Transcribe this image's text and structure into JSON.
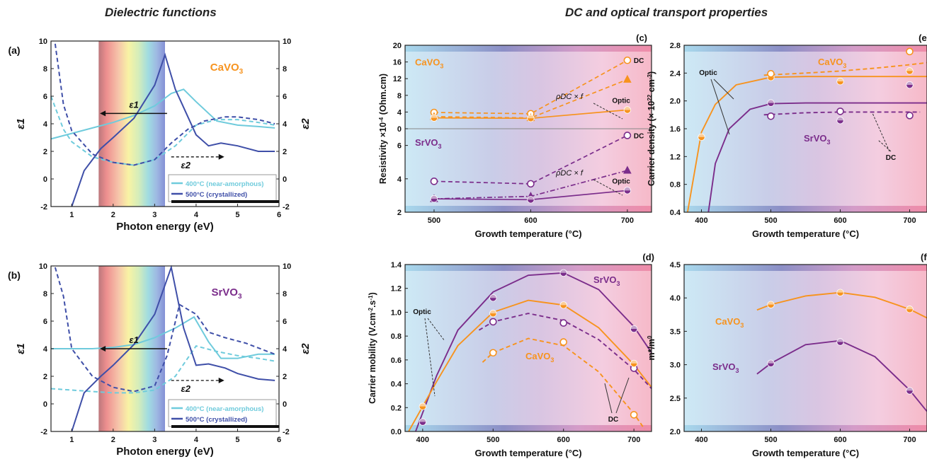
{
  "headings": {
    "left": "Dielectric functions",
    "right": "DC and optical transport properties"
  },
  "colors": {
    "light_blue": "#6fcbdc",
    "dark_blue": "#3f4fa8",
    "orange": "#f7931e",
    "purple": "#7b2d8b"
  },
  "chart_data": [
    {
      "panel": "(a)",
      "type": "line",
      "material": "CaVO3",
      "xlabel": "Photon energy (eV)",
      "ylabel": "ε1",
      "ylabel_right": "ε2",
      "xlim": [
        0.5,
        6
      ],
      "ylim": [
        -2,
        10
      ],
      "xticks": [
        1,
        2,
        3,
        4,
        5,
        6
      ],
      "yticks": [
        -2,
        0,
        2,
        4,
        6,
        8,
        10
      ],
      "visible_band_eV": [
        1.65,
        3.25
      ],
      "legend": [
        "400°C (near-amorphous)",
        "500°C (crystallized)"
      ],
      "annotations": [
        "ε1",
        "ε2"
      ],
      "series": [
        {
          "name": "400°C (near-amorphous)",
          "quantity": "ε1",
          "style": "solid",
          "color": "#6fcbdc",
          "x": [
            0.5,
            1.0,
            1.5,
            2.0,
            2.5,
            3.0,
            3.4,
            3.7,
            4.0,
            4.5,
            5.0,
            5.5,
            5.9
          ],
          "y": [
            2.9,
            3.3,
            3.7,
            4.1,
            4.6,
            5.3,
            6.2,
            6.5,
            5.6,
            4.2,
            3.9,
            3.8,
            3.7
          ]
        },
        {
          "name": "400°C (near-amorphous)",
          "quantity": "ε2",
          "style": "dashed",
          "color": "#6fcbdc",
          "x": [
            0.5,
            0.8,
            1.0,
            1.5,
            2.0,
            2.5,
            3.0,
            3.5,
            4.0,
            4.5,
            5.0,
            5.5,
            5.9
          ],
          "y": [
            6.0,
            3.6,
            2.7,
            1.6,
            1.2,
            1.0,
            1.4,
            2.4,
            3.9,
            4.3,
            4.3,
            4.1,
            3.9
          ]
        },
        {
          "name": "500°C (crystallized)",
          "quantity": "ε1",
          "style": "solid",
          "color": "#3f4fa8",
          "x": [
            1.0,
            1.3,
            1.7,
            2.0,
            2.5,
            3.0,
            3.25,
            3.5,
            4.0,
            4.3,
            4.6,
            5.0,
            5.5,
            5.9
          ],
          "y": [
            -2.0,
            0.6,
            2.2,
            3.0,
            4.4,
            6.8,
            9.0,
            6.5,
            3.2,
            2.4,
            2.6,
            2.4,
            2.0,
            2.0
          ]
        },
        {
          "name": "500°C (crystallized)",
          "quantity": "ε2",
          "style": "dashed",
          "color": "#3f4fa8",
          "x": [
            0.6,
            0.8,
            1.0,
            1.5,
            2.0,
            2.5,
            3.0,
            3.4,
            3.8,
            4.2,
            4.7,
            5.0,
            5.5,
            5.9
          ],
          "y": [
            9.8,
            5.4,
            3.5,
            1.8,
            1.2,
            1.0,
            1.4,
            2.6,
            3.6,
            4.2,
            4.5,
            4.5,
            4.3,
            4.0
          ]
        }
      ]
    },
    {
      "panel": "(b)",
      "type": "line",
      "material": "SrVO3",
      "xlabel": "Photon energy (eV)",
      "ylabel": "ε1",
      "ylabel_right": "ε2",
      "xlim": [
        0.5,
        6
      ],
      "ylim": [
        -2,
        10
      ],
      "xticks": [
        1,
        2,
        3,
        4,
        5,
        6
      ],
      "yticks": [
        -2,
        0,
        2,
        4,
        6,
        8,
        10
      ],
      "visible_band_eV": [
        1.65,
        3.25
      ],
      "legend": [
        "400°C (near-amorphous)",
        "500°C (crystallized)"
      ],
      "annotations": [
        "ε1",
        "ε2"
      ],
      "series": [
        {
          "name": "400°C (near-amorphous)",
          "quantity": "ε1",
          "style": "solid",
          "color": "#6fcbdc",
          "x": [
            0.5,
            1.0,
            1.5,
            2.0,
            2.5,
            3.0,
            3.5,
            3.95,
            4.3,
            4.6,
            5.0,
            5.5,
            5.9
          ],
          "y": [
            4.0,
            4.0,
            4.0,
            4.1,
            4.3,
            4.8,
            5.5,
            6.3,
            4.5,
            3.3,
            3.3,
            3.6,
            3.6
          ]
        },
        {
          "name": "400°C (near-amorphous)",
          "quantity": "ε2",
          "style": "dashed",
          "color": "#6fcbdc",
          "x": [
            0.5,
            1.0,
            1.5,
            2.0,
            2.5,
            3.0,
            3.5,
            4.0,
            4.5,
            5.0,
            5.5,
            5.9
          ],
          "y": [
            1.1,
            1.0,
            0.9,
            0.8,
            0.8,
            1.0,
            2.0,
            4.2,
            3.8,
            3.5,
            3.3,
            3.1
          ]
        },
        {
          "name": "500°C (crystallized)",
          "quantity": "ε1",
          "style": "solid",
          "color": "#3f4fa8",
          "x": [
            1.0,
            1.3,
            1.7,
            2.0,
            2.5,
            3.0,
            3.4,
            3.7,
            4.0,
            4.3,
            4.7,
            5.0,
            5.5,
            5.9
          ],
          "y": [
            -2.0,
            0.8,
            2.0,
            2.8,
            4.3,
            6.5,
            9.9,
            5.5,
            2.8,
            2.9,
            2.6,
            2.2,
            1.8,
            1.7
          ]
        },
        {
          "name": "500°C (crystallized)",
          "quantity": "ε2",
          "style": "dashed",
          "color": "#3f4fa8",
          "x": [
            0.6,
            0.8,
            1.0,
            1.5,
            2.0,
            2.5,
            3.0,
            3.3,
            3.6,
            4.0,
            4.3,
            4.7,
            5.2,
            5.9
          ],
          "y": [
            9.9,
            7.8,
            4.0,
            2.0,
            1.2,
            0.9,
            1.3,
            3.5,
            7.2,
            6.5,
            5.2,
            4.8,
            4.4,
            3.6
          ]
        }
      ]
    },
    {
      "panel": "(c)",
      "type": "line",
      "xlabel": "Growth temperature (°C)",
      "ylabel": "Resistivity ×10⁻⁴ (Ohm.cm)",
      "xlim": [
        470,
        725
      ],
      "xticks": [
        500,
        600,
        700
      ],
      "sub_panels": [
        {
          "material": "CaVO3",
          "color": "#f7931e",
          "ylim": [
            0,
            20
          ],
          "yticks": [
            0,
            4,
            8,
            12,
            16,
            20
          ],
          "annotations": [
            "DC",
            "ρDC × f",
            "Optic"
          ],
          "series": [
            {
              "name": "DC",
              "style": "dashed",
              "marker": "open-circle",
              "x": [
                500,
                600,
                700
              ],
              "y": [
                3.9,
                3.6,
                16.4
              ]
            },
            {
              "name": "ρDC × f",
              "style": "dashed",
              "marker": "triangle",
              "x": [
                500,
                600,
                700
              ],
              "y": [
                2.9,
                2.6,
                11.8
              ]
            },
            {
              "name": "Optic",
              "style": "solid",
              "marker": "half-circle",
              "x": [
                500,
                600,
                700
              ],
              "y": [
                2.6,
                2.5,
                4.5
              ]
            }
          ]
        },
        {
          "material": "SrVO3",
          "color": "#7b2d8b",
          "ylim": [
            2,
            7
          ],
          "yticks": [
            2,
            4,
            6
          ],
          "annotations": [
            "DC",
            "ρDC × f",
            "Optic"
          ],
          "series": [
            {
              "name": "DC",
              "style": "dashed",
              "marker": "open-circle",
              "x": [
                500,
                600,
                700
              ],
              "y": [
                3.85,
                3.7,
                6.6
              ]
            },
            {
              "name": "ρDC × f",
              "style": "dashdot",
              "marker": "triangle",
              "x": [
                500,
                600,
                700
              ],
              "y": [
                2.8,
                2.95,
                4.5
              ]
            },
            {
              "name": "Optic",
              "style": "solid",
              "marker": "half-circle",
              "x": [
                500,
                600,
                700
              ],
              "y": [
                2.8,
                2.75,
                3.3
              ]
            }
          ]
        }
      ]
    },
    {
      "panel": "(e)",
      "type": "scatter",
      "xlabel": "Growth temperature (°C)",
      "ylabel": "Carrier density (× 10²² cm⁻³)",
      "xlim": [
        375,
        725
      ],
      "ylim": [
        0.4,
        2.8
      ],
      "xticks": [
        400,
        500,
        600,
        700
      ],
      "yticks": [
        0.4,
        0.8,
        1.2,
        1.6,
        2.0,
        2.4,
        2.8
      ],
      "annotations": [
        "CaVO3",
        "SrVO3",
        "Optic",
        "DC"
      ],
      "series": [
        {
          "name": "CaVO3 Optic",
          "color": "#f7931e",
          "style": "solid",
          "marker": "half-circle",
          "x": [
            400,
            500,
            600,
            700
          ],
          "y": [
            1.48,
            2.34,
            2.28,
            2.43
          ]
        },
        {
          "name": "CaVO3 DC",
          "color": "#f7931e",
          "style": "dashed",
          "marker": "open-circle",
          "x": [
            500,
            700
          ],
          "y": [
            2.39,
            2.71
          ]
        },
        {
          "name": "SrVO3 Optic",
          "color": "#7b2d8b",
          "style": "solid",
          "marker": "half-circle",
          "x": [
            500,
            600,
            700
          ],
          "y": [
            1.97,
            1.72,
            2.23
          ]
        },
        {
          "name": "SrVO3 DC",
          "color": "#7b2d8b",
          "style": "dashed",
          "marker": "open-circle",
          "x": [
            500,
            600,
            700
          ],
          "y": [
            1.78,
            1.85,
            1.79
          ]
        }
      ],
      "fits": [
        {
          "color": "#f7931e",
          "style": "solid",
          "x": [
            380,
            400,
            420,
            450,
            500,
            550,
            725
          ],
          "y": [
            0.4,
            1.55,
            1.95,
            2.23,
            2.34,
            2.35,
            2.35
          ]
        },
        {
          "color": "#f7931e",
          "style": "dashed",
          "x": [
            490,
            550,
            600,
            650,
            700,
            725
          ],
          "y": [
            2.37,
            2.4,
            2.43,
            2.47,
            2.52,
            2.55
          ]
        },
        {
          "color": "#7b2d8b",
          "style": "solid",
          "x": [
            410,
            420,
            440,
            470,
            500,
            550,
            725
          ],
          "y": [
            0.4,
            1.1,
            1.6,
            1.88,
            1.96,
            1.97,
            1.97
          ]
        },
        {
          "color": "#7b2d8b",
          "style": "dashed",
          "x": [
            490,
            550,
            600,
            650,
            700,
            715
          ],
          "y": [
            1.8,
            1.83,
            1.84,
            1.84,
            1.84,
            1.84
          ]
        }
      ]
    },
    {
      "panel": "(d)",
      "type": "scatter",
      "xlabel": "Growth temperature (°C)",
      "ylabel": "Carrier mobility (V.cm⁻².s⁻¹)",
      "xlim": [
        375,
        725
      ],
      "ylim": [
        0,
        1.4
      ],
      "xticks": [
        400,
        500,
        600,
        700
      ],
      "yticks": [
        0.0,
        0.2,
        0.4,
        0.6,
        0.8,
        1.0,
        1.2,
        1.4
      ],
      "annotations": [
        "SrVO3",
        "CaVO3",
        "Optic",
        "DC"
      ],
      "series": [
        {
          "name": "SrVO3 Optic",
          "color": "#7b2d8b",
          "style": "solid",
          "marker": "half-circle",
          "x": [
            400,
            500,
            600,
            700
          ],
          "y": [
            0.08,
            1.12,
            1.33,
            0.86
          ]
        },
        {
          "name": "SrVO3 DC",
          "color": "#7b2d8b",
          "style": "dashed",
          "marker": "open-circle",
          "x": [
            500,
            600,
            700
          ],
          "y": [
            0.92,
            0.91,
            0.53
          ]
        },
        {
          "name": "CaVO3 Optic",
          "color": "#f7931e",
          "style": "solid",
          "marker": "half-circle",
          "x": [
            400,
            500,
            600,
            700
          ],
          "y": [
            0.21,
            0.99,
            1.06,
            0.57
          ]
        },
        {
          "name": "CaVO3 DC",
          "color": "#f7931e",
          "style": "dashed",
          "marker": "open-circle",
          "x": [
            500,
            600,
            700
          ],
          "y": [
            0.66,
            0.75,
            0.14
          ]
        }
      ],
      "fits": [
        {
          "color": "#7b2d8b",
          "style": "solid",
          "x": [
            390,
            420,
            450,
            500,
            550,
            600,
            650,
            700,
            725
          ],
          "y": [
            0.0,
            0.47,
            0.85,
            1.17,
            1.31,
            1.33,
            1.19,
            0.88,
            0.66
          ]
        },
        {
          "color": "#f7931e",
          "style": "solid",
          "x": [
            380,
            420,
            450,
            500,
            550,
            600,
            650,
            700,
            725
          ],
          "y": [
            0.0,
            0.42,
            0.72,
            1.0,
            1.1,
            1.06,
            0.87,
            0.56,
            0.37
          ]
        },
        {
          "color": "#7b2d8b",
          "style": "dashed",
          "x": [
            480,
            500,
            550,
            600,
            650,
            700,
            725
          ],
          "y": [
            0.85,
            0.92,
            0.99,
            0.93,
            0.77,
            0.52,
            0.36
          ]
        },
        {
          "color": "#f7931e",
          "style": "dashed",
          "x": [
            485,
            500,
            550,
            600,
            650,
            700,
            715
          ],
          "y": [
            0.58,
            0.66,
            0.78,
            0.72,
            0.5,
            0.15,
            0.02
          ]
        }
      ]
    },
    {
      "panel": "(f)",
      "type": "scatter",
      "xlabel": "Growth temperature (°C)",
      "ylabel": "m*/m0",
      "xlim": [
        375,
        725
      ],
      "ylim": [
        2.0,
        4.5
      ],
      "xticks": [
        400,
        500,
        600,
        700
      ],
      "yticks": [
        2.0,
        2.5,
        3.0,
        3.5,
        4.0,
        4.5
      ],
      "annotations": [
        "CaVO3",
        "SrVO3"
      ],
      "series": [
        {
          "name": "CaVO3",
          "color": "#f7931e",
          "marker": "half-circle",
          "x": [
            500,
            600,
            700
          ],
          "y": [
            3.9,
            4.08,
            3.83
          ]
        },
        {
          "name": "SrVO3",
          "color": "#7b2d8b",
          "marker": "half-circle",
          "x": [
            500,
            600,
            700
          ],
          "y": [
            3.02,
            3.34,
            2.61
          ]
        }
      ],
      "fits": [
        {
          "color": "#f7931e",
          "style": "solid",
          "x": [
            480,
            500,
            550,
            600,
            650,
            700,
            725
          ],
          "y": [
            3.82,
            3.9,
            4.03,
            4.08,
            4.01,
            3.83,
            3.7
          ]
        },
        {
          "color": "#7b2d8b",
          "style": "solid",
          "x": [
            480,
            500,
            550,
            600,
            650,
            700,
            725
          ],
          "y": [
            2.86,
            3.02,
            3.3,
            3.36,
            3.12,
            2.62,
            2.3
          ]
        }
      ]
    }
  ]
}
